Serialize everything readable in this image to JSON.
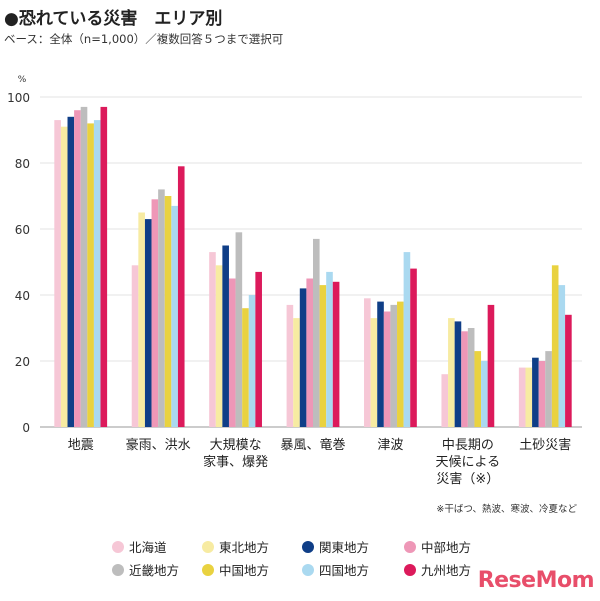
{
  "header": {
    "title": "●恐れている災害　エリア別",
    "subtitle": "ベース：全体（n=1,000）／複数回答５つまで選択可"
  },
  "footnote": "※干ばつ、熱波、寒波、冷夏など",
  "logo": "ReseMom",
  "chart_data": {
    "type": "bar",
    "title": "恐れている災害　エリア別",
    "ylabel": "%",
    "ylim": [
      0,
      100
    ],
    "yticks": [
      0,
      20,
      40,
      60,
      80,
      100
    ],
    "grid": true,
    "legend_position": "bottom",
    "categories": [
      [
        "地震"
      ],
      [
        "豪雨、洪水"
      ],
      [
        "大規模な",
        "家事、爆発"
      ],
      [
        "暴風、竜巻"
      ],
      [
        "津波"
      ],
      [
        "中長期の",
        "天候による",
        "災害（※）"
      ],
      [
        "土砂災害"
      ]
    ],
    "series": [
      {
        "name": "北海道",
        "color": "#f6c7d6",
        "values": [
          93,
          49,
          53,
          37,
          39,
          16,
          18
        ]
      },
      {
        "name": "東北地方",
        "color": "#f7eba2",
        "values": [
          91,
          65,
          49,
          33,
          33,
          33,
          18
        ]
      },
      {
        "name": "関東地方",
        "color": "#0f3e87",
        "values": [
          94,
          63,
          55,
          42,
          38,
          32,
          21
        ]
      },
      {
        "name": "中部地方",
        "color": "#ee97b7",
        "values": [
          96,
          69,
          45,
          45,
          35,
          29,
          20
        ]
      },
      {
        "name": "近畿地方",
        "color": "#bdbdbd",
        "values": [
          97,
          72,
          59,
          57,
          37,
          30,
          23
        ]
      },
      {
        "name": "中国地方",
        "color": "#e9d240",
        "values": [
          92,
          70,
          36,
          43,
          38,
          23,
          49
        ]
      },
      {
        "name": "四国地方",
        "color": "#aad9f0",
        "values": [
          93,
          67,
          40,
          47,
          53,
          20,
          43
        ]
      },
      {
        "name": "九州地方",
        "color": "#dc1a5b",
        "values": [
          97,
          79,
          47,
          44,
          48,
          37,
          34
        ]
      }
    ]
  }
}
